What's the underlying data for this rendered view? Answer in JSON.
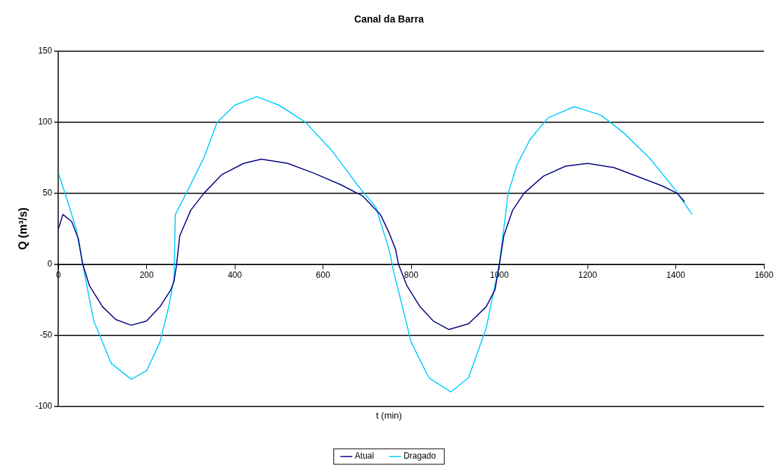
{
  "chart_data": {
    "type": "line",
    "title": "Canal da Barra",
    "xlabel": "t (min)",
    "ylabel": "Q (m³/s)",
    "xlim": [
      0,
      1600
    ],
    "xticks": [
      0,
      200,
      400,
      600,
      800,
      1000,
      1200,
      1400,
      1600
    ],
    "ylim": [
      -100,
      150
    ],
    "yticks": [
      -100,
      -50,
      0,
      50,
      100,
      150
    ],
    "grid": "y",
    "legend": "bottom",
    "marker": "none",
    "line_style": "solid",
    "series": [
      {
        "name": "Atual",
        "color": "#000080",
        "x": [
          0,
          10,
          30,
          45,
          55,
          70,
          100,
          130,
          165,
          200,
          230,
          255,
          262,
          268,
          275,
          300,
          330,
          370,
          420,
          460,
          520,
          580,
          640,
          690,
          730,
          750,
          765,
          771,
          790,
          820,
          850,
          885,
          930,
          970,
          990,
          1000,
          1010,
          1030,
          1056,
          1100,
          1150,
          1200,
          1260,
          1320,
          1370,
          1403,
          1420
        ],
        "values": [
          25,
          35,
          30,
          18,
          0,
          -15,
          -30,
          -39,
          -43,
          -40,
          -30,
          -18,
          -12,
          0,
          20,
          38,
          50,
          63,
          71,
          74,
          71,
          64,
          56,
          48,
          35,
          22,
          10,
          0,
          -15,
          -30,
          -40,
          -46,
          -42,
          -30,
          -18,
          0,
          20,
          38,
          50,
          62,
          69,
          71,
          68,
          61,
          55,
          50,
          44
        ]
      },
      {
        "name": "Dragado",
        "color": "#00ccff",
        "x": [
          0,
          20,
          40,
          55,
          80,
          120,
          165,
          200,
          230,
          250,
          262,
          265,
          290,
          330,
          360,
          400,
          450,
          500,
          560,
          620,
          680,
          720,
          750,
          760,
          800,
          840,
          890,
          930,
          970,
          990,
          1000,
          1010,
          1020,
          1040,
          1070,
          1110,
          1170,
          1230,
          1280,
          1340,
          1400,
          1437
        ],
        "values": [
          64,
          45,
          25,
          0,
          -40,
          -70,
          -81,
          -75,
          -55,
          -30,
          -10,
          35,
          50,
          75,
          100,
          112,
          118,
          112,
          100,
          80,
          55,
          40,
          10,
          -5,
          -55,
          -80,
          -90,
          -80,
          -45,
          -15,
          0,
          25,
          50,
          70,
          88,
          103,
          111,
          105,
          93,
          75,
          52,
          35
        ]
      }
    ]
  }
}
